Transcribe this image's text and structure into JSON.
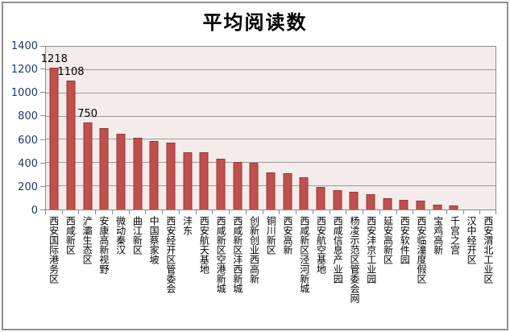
{
  "chart_data": {
    "type": "bar",
    "title": "平均阅读数",
    "categories": [
      "西安国际港务区",
      "西咸新区",
      "浐灞生态区",
      "安康高新视野",
      "微动秦汉",
      "曲江新区",
      "中国蔡家坡",
      "西安经开区管委会",
      "沣东",
      "西安航天基地",
      "西咸新区空港新城",
      "西咸新区沣西新城",
      "创新创业西高新",
      "铜川新区",
      "西安高新",
      "西咸新区泾河新城",
      "西安航空基地",
      "西咸信息产业园",
      "杨凌示范区管委会网",
      "西安沣京工业园",
      "延安高新区",
      "西安软件园",
      "西安临潼度假区",
      "宝鸡高新",
      "千宫之宫",
      "汉中经开区",
      "西安渭北工业区"
    ],
    "values": [
      1218,
      1108,
      750,
      700,
      650,
      615,
      590,
      575,
      495,
      490,
      440,
      410,
      400,
      320,
      310,
      275,
      195,
      165,
      150,
      135,
      95,
      80,
      75,
      40,
      35,
      0,
      0
    ],
    "annotations": [
      {
        "index": 0,
        "text": "1218"
      },
      {
        "index": 1,
        "text": "1108"
      },
      {
        "index": 2,
        "text": "750"
      }
    ],
    "xlabel": "",
    "ylabel": "",
    "ylim": [
      0,
      1400
    ],
    "ytick_step": 200,
    "ytick_labels": [
      "0",
      "200",
      "400",
      "600",
      "800",
      "1000",
      "1200",
      "1400"
    ],
    "grid": true,
    "legend_position": "none",
    "colors": {
      "bar_fill": "#c0504d",
      "bar_border": "#943634",
      "plot_bg": "#f3eceb",
      "grid_line": "#9a9a9a",
      "axis_line": "#8c8c8c",
      "axis_text": "#1f3864",
      "annotation_text": "#000000",
      "category_text": "#000000",
      "frame_border": "#8f8f8f"
    }
  }
}
